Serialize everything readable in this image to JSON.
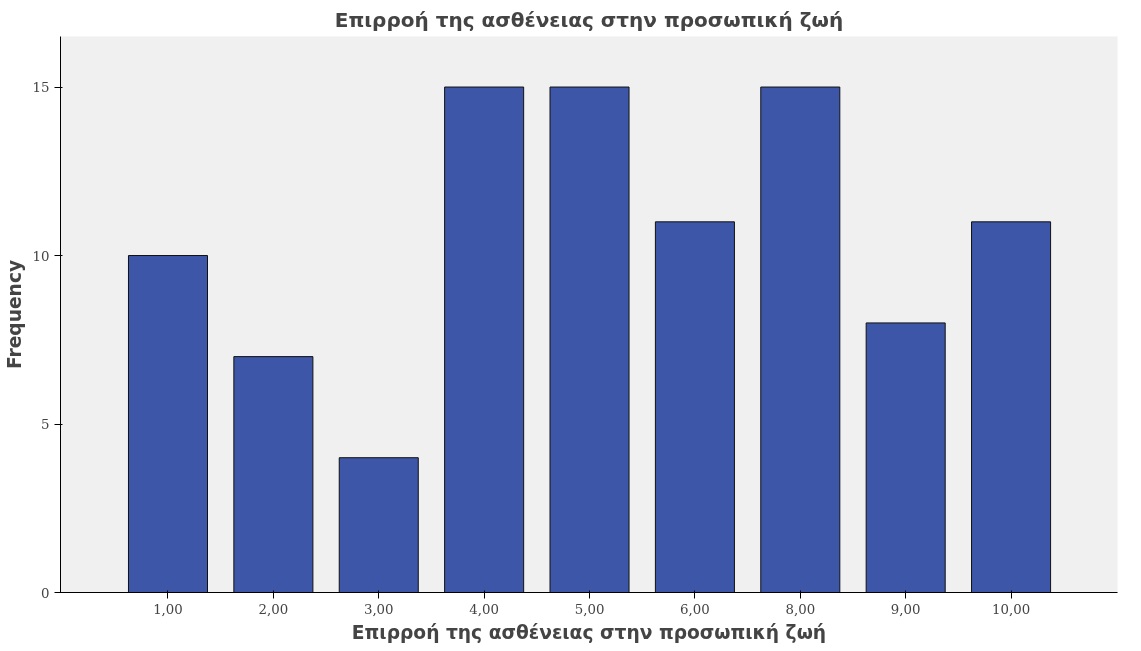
{
  "chart_data": {
    "type": "bar",
    "title": "Επιρροή της ασθένειας στην προσωπική ζωή",
    "xlabel": "Επιρροή της ασθένειας στην προσωπική ζωή",
    "ylabel": "Frequency",
    "categories": [
      "1,00",
      "2,00",
      "3,00",
      "4,00",
      "5,00",
      "6,00",
      "8,00",
      "9,00",
      "10,00"
    ],
    "values": [
      10,
      7,
      4,
      15,
      15,
      11,
      15,
      8,
      11
    ],
    "color": "#3d56a8",
    "ylim": [
      0,
      16.5
    ],
    "yticks": [
      0,
      5,
      10,
      15
    ],
    "grid": false
  }
}
